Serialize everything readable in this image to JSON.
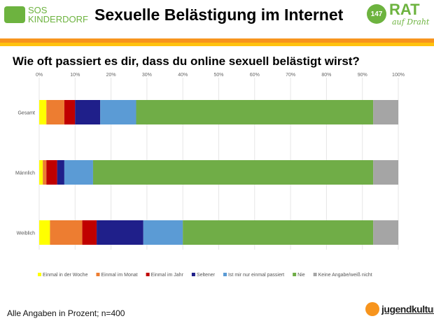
{
  "header": {
    "title": "Sexuelle Belästigung im Internet",
    "logo_left_text": [
      "SOS",
      "KINDERDORF"
    ],
    "logo_right_number": "147",
    "logo_right_text": "RAT",
    "logo_right_sub": "auf Draht"
  },
  "question": "Wie oft passiert es dir, dass du online sexuell belästigt wirst?",
  "footer": {
    "note": "Alle Angaben in Prozent; n=400",
    "logo_text": "jugendkultur.at"
  },
  "colors": {
    "accent_orange": "#f7941d",
    "accent_yellow": "#ffc20e",
    "brand_green": "#6db33f"
  },
  "chart_data": {
    "type": "bar",
    "orientation": "horizontal",
    "stacked": true,
    "categories": [
      "Gesamt",
      "Männlich",
      "Weiblich"
    ],
    "xlim": [
      0,
      100
    ],
    "xticks": [
      "0%",
      "10%",
      "20%",
      "30%",
      "40%",
      "50%",
      "60%",
      "70%",
      "80%",
      "90%",
      "100%"
    ],
    "grid": true,
    "legend": "bottom",
    "series": [
      {
        "name": "Einmal in der Woche",
        "color": "#ffff00",
        "values": [
          2,
          1,
          3
        ]
      },
      {
        "name": "Einmal im Monat",
        "color": "#ed7d31",
        "values": [
          5,
          1,
          9
        ]
      },
      {
        "name": "Einmal im Jahr",
        "color": "#c00000",
        "values": [
          3,
          3,
          4
        ]
      },
      {
        "name": "Seltener",
        "color": "#1f1f8a",
        "values": [
          7,
          2,
          13
        ]
      },
      {
        "name": "Ist mir nur einmal passiert",
        "color": "#5b9bd5",
        "values": [
          10,
          8,
          11
        ]
      },
      {
        "name": "Nie",
        "color": "#70ad47",
        "values": [
          66,
          78,
          53
        ]
      },
      {
        "name": "Keine Angabe/weiß nicht",
        "color": "#a5a5a5",
        "values": [
          7,
          7,
          7
        ]
      }
    ]
  }
}
